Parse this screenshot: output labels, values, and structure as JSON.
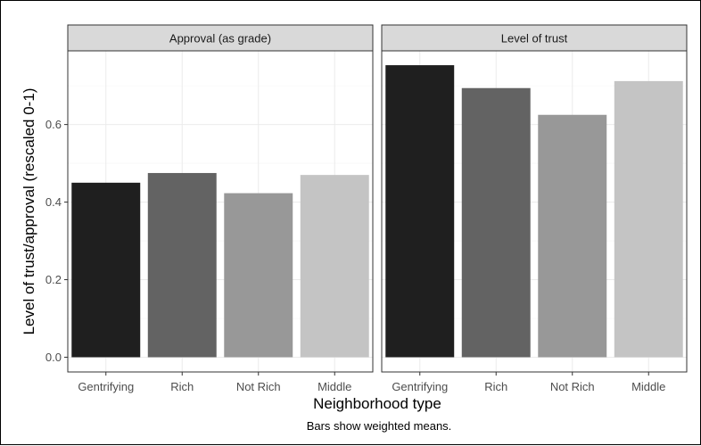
{
  "chart_data": {
    "type": "bar",
    "categories": [
      "Gentrifying",
      "Rich",
      "Not Rich",
      "Middle"
    ],
    "bar_colors": [
      "#1f1f1f",
      "#636363",
      "#989898",
      "#c4c4c4"
    ],
    "panels": [
      {
        "title": "Approval (as grade)",
        "values": [
          0.45,
          0.475,
          0.423,
          0.47
        ]
      },
      {
        "title": "Level of trust",
        "values": [
          0.753,
          0.694,
          0.625,
          0.712
        ]
      }
    ],
    "xlabel": "Neighborhood type",
    "ylabel": "Level of trust/approval (rescaled 0-1)",
    "ylim": [
      -0.038,
      0.79
    ],
    "yticks": [
      0.0,
      0.2,
      0.4,
      0.6
    ],
    "ytick_labels": [
      "0.0",
      "0.2",
      "0.4",
      "0.6"
    ],
    "grid": true,
    "legend": "none",
    "caption": "Bars show weighted means."
  }
}
